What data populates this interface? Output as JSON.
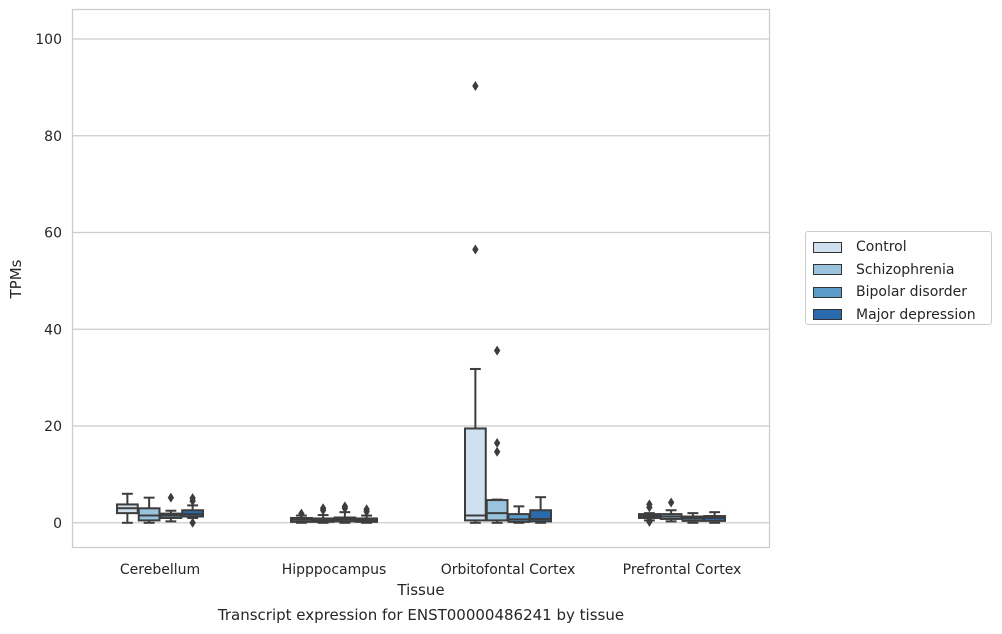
{
  "chart_data": {
    "type": "box",
    "title": "Transcript expression for ENST00000486241 by tissue",
    "xlabel": "Tissue",
    "ylabel": "TPMs",
    "ylim": [
      -5,
      106
    ],
    "yticks": [
      0,
      20,
      40,
      60,
      80,
      100
    ],
    "grid": "horizontal",
    "legend_position": "right",
    "categories": [
      "Cerebellum",
      "Hipppocampus",
      "Orbitofontal Cortex",
      "Prefrontal Cortex"
    ],
    "series": [
      {
        "name": "Control",
        "color": "#cfe1f1",
        "boxes": [
          {
            "whisker_low": 0,
            "q1": 2,
            "median": 3,
            "q3": 3.8,
            "whisker_high": 6,
            "outliers": []
          },
          {
            "whisker_low": 0,
            "q1": 0.2,
            "median": 0.6,
            "q3": 1.0,
            "whisker_high": 1.5,
            "outliers": [
              1.9
            ]
          },
          {
            "whisker_low": 0,
            "q1": 0.5,
            "median": 1.5,
            "q3": 19.5,
            "whisker_high": 31.8,
            "outliers": [
              56.5,
              90.3
            ]
          },
          {
            "whisker_low": 0.5,
            "q1": 1.0,
            "median": 1.4,
            "q3": 1.8,
            "whisker_high": 2.0,
            "outliers": [
              0.2,
              0.5,
              3.2,
              3.8
            ]
          }
        ]
      },
      {
        "name": "Schizophrenia",
        "color": "#9ac3de",
        "boxes": [
          {
            "whisker_low": 0,
            "q1": 0.5,
            "median": 1.5,
            "q3": 3.0,
            "whisker_high": 5.2,
            "outliers": []
          },
          {
            "whisker_low": 0,
            "q1": 0.2,
            "median": 0.5,
            "q3": 0.9,
            "whisker_high": 1.6,
            "outliers": [
              2.6,
              3.0
            ]
          },
          {
            "whisker_low": 0,
            "q1": 0.5,
            "median": 2.0,
            "q3": 4.7,
            "whisker_high": 4.8,
            "outliers": [
              14.7,
              16.5,
              35.6
            ]
          },
          {
            "whisker_low": 0.3,
            "q1": 0.8,
            "median": 1.3,
            "q3": 1.8,
            "whisker_high": 2.6,
            "outliers": [
              4.2
            ]
          }
        ]
      },
      {
        "name": "Bipolar disorder",
        "color": "#5b9bc9",
        "boxes": [
          {
            "whisker_low": 0.3,
            "q1": 1.0,
            "median": 1.5,
            "q3": 1.9,
            "whisker_high": 2.5,
            "outliers": [
              5.2
            ]
          },
          {
            "whisker_low": 0,
            "q1": 0.3,
            "median": 0.7,
            "q3": 1.1,
            "whisker_high": 2.2,
            "outliers": [
              3.0,
              3.4
            ]
          },
          {
            "whisker_low": 0,
            "q1": 0.2,
            "median": 0.7,
            "q3": 1.8,
            "whisker_high": 3.4,
            "outliers": []
          },
          {
            "whisker_low": 0,
            "q1": 0.4,
            "median": 0.9,
            "q3": 1.3,
            "whisker_high": 2.0,
            "outliers": []
          }
        ]
      },
      {
        "name": "Major depression",
        "color": "#2a6bad",
        "boxes": [
          {
            "whisker_low": 1.0,
            "q1": 1.3,
            "median": 1.8,
            "q3": 2.6,
            "whisker_high": 3.6,
            "outliers": [
              0.0,
              4.5,
              5.1
            ]
          },
          {
            "whisker_low": 0,
            "q1": 0.2,
            "median": 0.5,
            "q3": 0.9,
            "whisker_high": 1.5,
            "outliers": [
              2.3,
              2.8
            ]
          },
          {
            "whisker_low": 0,
            "q1": 0.3,
            "median": 0.8,
            "q3": 2.6,
            "whisker_high": 5.3,
            "outliers": []
          },
          {
            "whisker_low": 0,
            "q1": 0.4,
            "median": 1.0,
            "q3": 1.4,
            "whisker_high": 2.2,
            "outliers": []
          }
        ]
      }
    ]
  }
}
